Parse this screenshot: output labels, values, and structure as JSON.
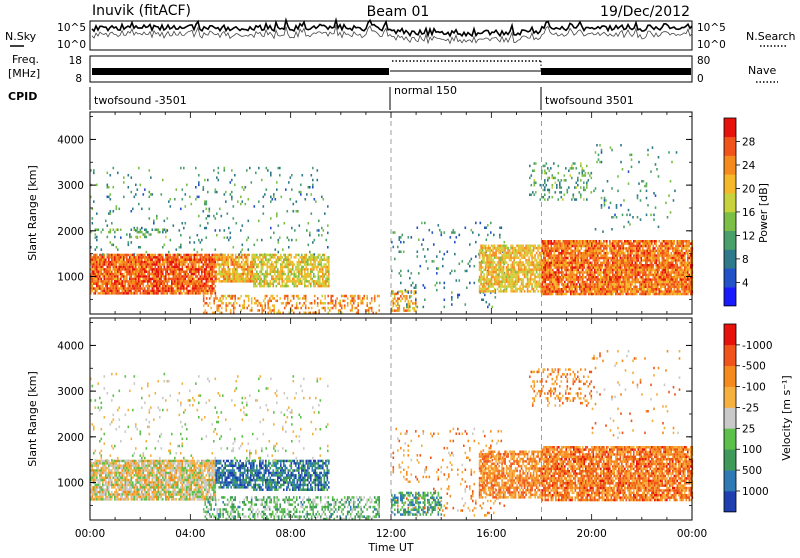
{
  "header": {
    "station": "Inuvik (fitACF)",
    "beam": "Beam 01",
    "date": "19/Dec/2012"
  },
  "nsky_panel": {
    "left_label": "N.Sky",
    "right_label": "N.Search",
    "left_ticks": [
      "10^5",
      "10^0"
    ],
    "right_ticks": [
      "10^5",
      "10^0"
    ]
  },
  "freq_panel": {
    "left_label": "Freq.",
    "left_unit": "[MHz]",
    "right_label": "Nave",
    "left_ticks": [
      "18",
      "8"
    ],
    "right_ticks": [
      "80",
      "0"
    ]
  },
  "cpid": {
    "label": "CPID",
    "segments": [
      {
        "name": "twofsound -3501",
        "start_hour": 0
      },
      {
        "name": "normal 150",
        "start_hour": 12
      },
      {
        "name": "twofsound 3501",
        "start_hour": 18
      }
    ]
  },
  "chart_data": [
    {
      "type": "heatmap",
      "panel": "power",
      "ylabel": "Slant Range [km]",
      "xlim": [
        0,
        24
      ],
      "ylim": [
        180,
        4600
      ],
      "yticks": [
        "1000",
        "2000",
        "3000",
        "4000"
      ],
      "colorbar": {
        "label": "Power [dB]",
        "ticks": [
          "4",
          "8",
          "12",
          "16",
          "20",
          "24",
          "28"
        ],
        "colors": [
          "#1a1aff",
          "#2352c8",
          "#2f7a8a",
          "#4aa06a",
          "#7bbf47",
          "#c8d23c",
          "#f5b82a",
          "#f58a1e",
          "#f0541a",
          "#e8120c"
        ]
      },
      "blobs": [
        {
          "x0": 0.0,
          "x1": 5.0,
          "y0": 650,
          "y1": 1500,
          "level": 0.85,
          "density": 0.9
        },
        {
          "x0": 5.0,
          "x1": 6.5,
          "y0": 900,
          "y1": 1500,
          "level": 0.7,
          "density": 0.8
        },
        {
          "x0": 6.5,
          "x1": 9.5,
          "y0": 800,
          "y1": 1500,
          "level": 0.6,
          "density": 0.7
        },
        {
          "x0": 0.0,
          "x1": 9.5,
          "y0": 1500,
          "y1": 3400,
          "level": 0.3,
          "density": 0.05
        },
        {
          "x0": 0.0,
          "x1": 3.0,
          "y0": 1850,
          "y1": 2050,
          "level": 0.4,
          "density": 0.3
        },
        {
          "x0": 4.5,
          "x1": 11.5,
          "y0": 200,
          "y1": 600,
          "level": 0.75,
          "density": 0.35
        },
        {
          "x0": 12.0,
          "x1": 13.0,
          "y0": 250,
          "y1": 700,
          "level": 0.7,
          "density": 0.5
        },
        {
          "x0": 12.0,
          "x1": 16.5,
          "y0": 300,
          "y1": 2200,
          "level": 0.25,
          "density": 0.06
        },
        {
          "x0": 15.5,
          "x1": 18.0,
          "y0": 700,
          "y1": 1700,
          "level": 0.65,
          "density": 0.75
        },
        {
          "x0": 18.0,
          "x1": 24.0,
          "y0": 600,
          "y1": 1800,
          "level": 0.82,
          "density": 0.9
        },
        {
          "x0": 17.5,
          "x1": 20.0,
          "y0": 2700,
          "y1": 3500,
          "level": 0.35,
          "density": 0.2
        },
        {
          "x0": 20.0,
          "x1": 23.5,
          "y0": 2000,
          "y1": 3900,
          "level": 0.3,
          "density": 0.04
        }
      ]
    },
    {
      "type": "heatmap",
      "panel": "velocity",
      "ylabel": "Slant Range [km]",
      "xlabel": "Time UT",
      "xlim": [
        0,
        24
      ],
      "ylim": [
        180,
        4600
      ],
      "xticks": [
        "00:00",
        "04:00",
        "08:00",
        "12:00",
        "16:00",
        "20:00",
        "00:00"
      ],
      "yticks": [
        "1000",
        "2000",
        "3000",
        "4000"
      ],
      "colorbar": {
        "label": "Velocity [m s⁻¹]",
        "ticks": [
          "1000",
          "500",
          "100",
          "25",
          "-25",
          "-100",
          "-500",
          "-1000"
        ],
        "colors": [
          "#1f3fb0",
          "#2f7ab5",
          "#3f9a5a",
          "#5cc04a",
          "#c9c9c9",
          "#f5b040",
          "#f58a1e",
          "#f0541a",
          "#e8120c"
        ]
      },
      "blobs": [
        {
          "x0": 0.0,
          "x1": 5.0,
          "y0": 650,
          "y1": 1500,
          "level": 0.55,
          "density": 0.85
        },
        {
          "x0": 5.0,
          "x1": 6.5,
          "y0": 900,
          "y1": 1500,
          "level": 0.1,
          "density": 0.75
        },
        {
          "x0": 6.5,
          "x1": 9.5,
          "y0": 850,
          "y1": 1500,
          "level": 0.15,
          "density": 0.7
        },
        {
          "x0": 0.0,
          "x1": 9.5,
          "y0": 1500,
          "y1": 3400,
          "level": 0.5,
          "density": 0.05
        },
        {
          "x0": 4.5,
          "x1": 11.5,
          "y0": 200,
          "y1": 700,
          "level": 0.35,
          "density": 0.4
        },
        {
          "x0": 12.0,
          "x1": 16.5,
          "y0": 300,
          "y1": 2200,
          "level": 0.7,
          "density": 0.08
        },
        {
          "x0": 12.0,
          "x1": 14.0,
          "y0": 300,
          "y1": 800,
          "level": 0.25,
          "density": 0.5
        },
        {
          "x0": 15.5,
          "x1": 18.0,
          "y0": 700,
          "y1": 1700,
          "level": 0.75,
          "density": 0.7
        },
        {
          "x0": 18.0,
          "x1": 24.0,
          "y0": 600,
          "y1": 1800,
          "level": 0.78,
          "density": 0.85
        },
        {
          "x0": 17.5,
          "x1": 20.0,
          "y0": 2700,
          "y1": 3500,
          "level": 0.75,
          "density": 0.2
        },
        {
          "x0": 20.0,
          "x1": 23.5,
          "y0": 2000,
          "y1": 3900,
          "level": 0.7,
          "density": 0.04
        }
      ]
    }
  ]
}
